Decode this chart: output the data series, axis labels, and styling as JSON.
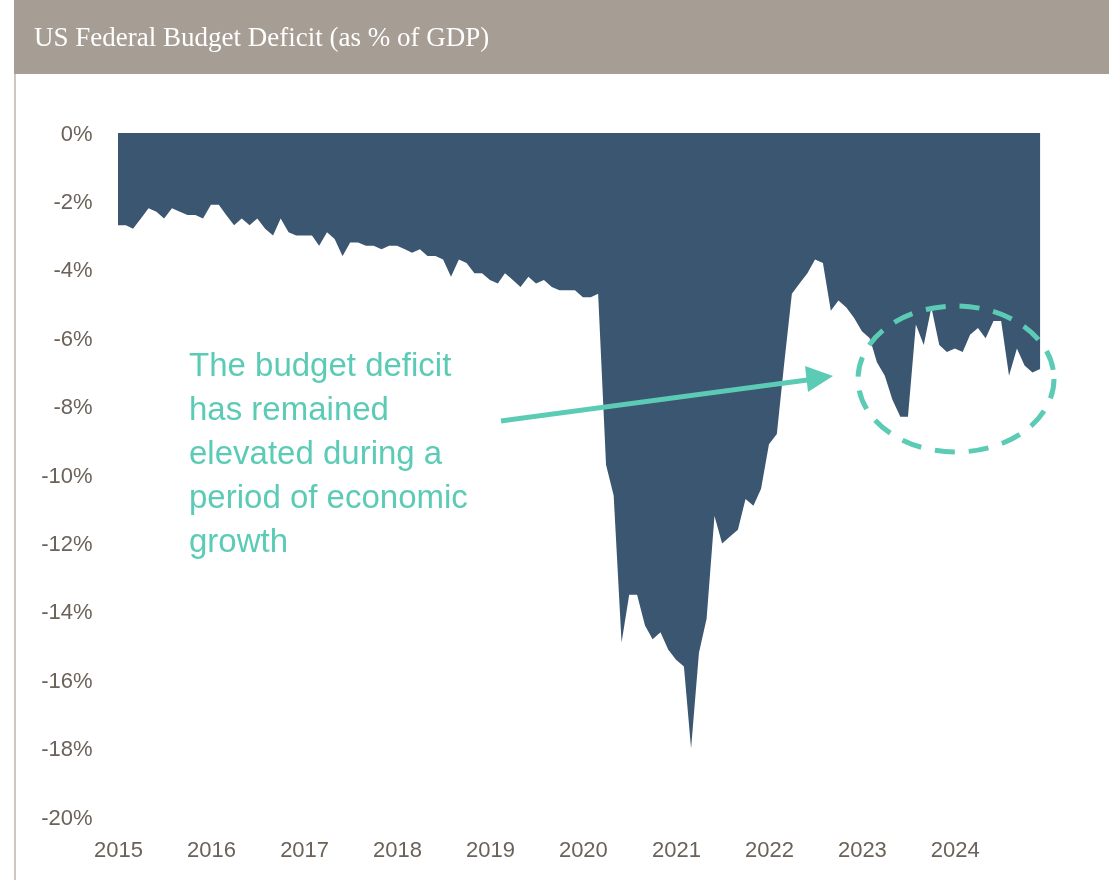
{
  "chart_data": {
    "type": "area",
    "title": "US Federal Budget Deficit (as % of GDP)",
    "annotations": [
      "The budget deficit has remained elevated during a period of economic growth"
    ],
    "x": [
      "2015-01",
      "2015-02",
      "2015-03",
      "2015-04",
      "2015-05",
      "2015-06",
      "2015-07",
      "2015-08",
      "2015-09",
      "2015-10",
      "2015-11",
      "2015-12",
      "2016-01",
      "2016-02",
      "2016-03",
      "2016-04",
      "2016-05",
      "2016-06",
      "2016-07",
      "2016-08",
      "2016-09",
      "2016-10",
      "2016-11",
      "2016-12",
      "2017-01",
      "2017-02",
      "2017-03",
      "2017-04",
      "2017-05",
      "2017-06",
      "2017-07",
      "2017-08",
      "2017-09",
      "2017-10",
      "2017-11",
      "2017-12",
      "2018-01",
      "2018-02",
      "2018-03",
      "2018-04",
      "2018-05",
      "2018-06",
      "2018-07",
      "2018-08",
      "2018-09",
      "2018-10",
      "2018-11",
      "2018-12",
      "2019-01",
      "2019-02",
      "2019-03",
      "2019-04",
      "2019-05",
      "2019-06",
      "2019-07",
      "2019-08",
      "2019-09",
      "2019-10",
      "2019-11",
      "2019-12",
      "2020-01",
      "2020-02",
      "2020-03",
      "2020-04",
      "2020-05",
      "2020-06",
      "2020-07",
      "2020-08",
      "2020-09",
      "2020-10",
      "2020-11",
      "2020-12",
      "2021-01",
      "2021-02",
      "2021-03",
      "2021-04",
      "2021-05",
      "2021-06",
      "2021-07",
      "2021-08",
      "2021-09",
      "2021-10",
      "2021-11",
      "2021-12",
      "2022-01",
      "2022-02",
      "2022-03",
      "2022-04",
      "2022-05",
      "2022-06",
      "2022-07",
      "2022-08",
      "2022-09",
      "2022-10",
      "2022-11",
      "2022-12",
      "2023-01",
      "2023-02",
      "2023-03",
      "2023-04",
      "2023-05",
      "2023-06",
      "2023-07",
      "2023-08",
      "2023-09",
      "2023-10",
      "2023-11",
      "2023-12",
      "2024-01",
      "2024-02",
      "2024-03",
      "2024-04",
      "2024-05",
      "2024-06",
      "2024-07",
      "2024-08",
      "2024-09",
      "2024-10",
      "2024-11",
      "2024-12"
    ],
    "series": [
      {
        "color": "#3b5670",
        "values": [
          -2.7,
          -2.7,
          -2.8,
          -2.5,
          -2.2,
          -2.3,
          -2.5,
          -2.2,
          -2.3,
          -2.4,
          -2.4,
          -2.5,
          -2.1,
          -2.1,
          -2.4,
          -2.7,
          -2.5,
          -2.7,
          -2.5,
          -2.8,
          -3.0,
          -2.5,
          -2.9,
          -3.0,
          -3.0,
          -3.0,
          -3.3,
          -2.9,
          -3.1,
          -3.6,
          -3.2,
          -3.2,
          -3.3,
          -3.3,
          -3.4,
          -3.3,
          -3.3,
          -3.4,
          -3.5,
          -3.4,
          -3.6,
          -3.6,
          -3.7,
          -4.2,
          -3.7,
          -3.8,
          -4.1,
          -4.1,
          -4.3,
          -4.4,
          -4.1,
          -4.3,
          -4.5,
          -4.2,
          -4.4,
          -4.3,
          -4.5,
          -4.6,
          -4.6,
          -4.6,
          -4.8,
          -4.8,
          -4.7,
          -9.7,
          -10.6,
          -14.9,
          -13.5,
          -13.5,
          -14.4,
          -14.8,
          -14.6,
          -15.1,
          -15.4,
          -15.6,
          -18.0,
          -15.2,
          -14.2,
          -11.2,
          -12.0,
          -11.8,
          -11.6,
          -10.7,
          -10.9,
          -10.4,
          -9.1,
          -8.8,
          -6.8,
          -4.7,
          -4.4,
          -4.1,
          -3.7,
          -3.8,
          -5.2,
          -4.9,
          -5.1,
          -5.4,
          -5.8,
          -6.0,
          -6.7,
          -7.1,
          -7.8,
          -8.3,
          -8.3,
          -5.6,
          -6.2,
          -5.1,
          -6.2,
          -6.4,
          -6.3,
          -6.4,
          -5.9,
          -5.7,
          -6.0,
          -5.5,
          -5.5,
          -7.1,
          -6.3,
          -6.8,
          -7.0,
          -6.9
        ]
      }
    ],
    "xlim": [
      "2015-01",
      "2025-03"
    ],
    "xticks": [
      "2015",
      "2016",
      "2017",
      "2018",
      "2019",
      "2020",
      "2021",
      "2022",
      "2023",
      "2024"
    ],
    "ylim": [
      -20,
      0
    ],
    "yticks": [
      {
        "value": 0,
        "label": "0%"
      },
      {
        "value": -2,
        "label": "-2%"
      },
      {
        "value": -4,
        "label": "-4%"
      },
      {
        "value": -6,
        "label": "-6%"
      },
      {
        "value": -8,
        "label": "-8%"
      },
      {
        "value": -10,
        "label": "-10%"
      },
      {
        "value": -12,
        "label": "-12%"
      },
      {
        "value": -14,
        "label": "-14%"
      },
      {
        "value": -16,
        "label": "-16%"
      },
      {
        "value": -18,
        "label": "-18%"
      },
      {
        "value": -20,
        "label": "-20%"
      }
    ]
  }
}
